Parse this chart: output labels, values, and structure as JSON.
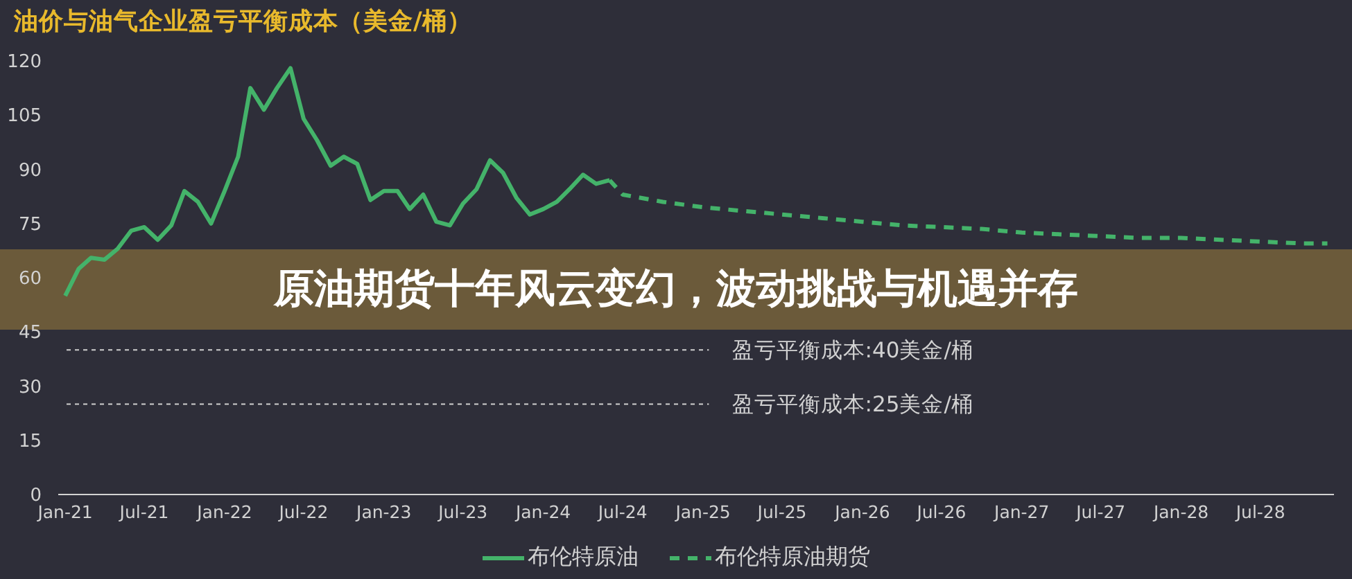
{
  "chart_data": {
    "type": "line",
    "title": "油价与油气企业盈亏平衡成本（美金/桶）",
    "annotations": [
      "原油期货十年风云变幻，波动挑战与机遇并存"
    ],
    "series": [
      {
        "name": "布伦特原油",
        "color": "#44b36a",
        "line_style": "solid",
        "x": [
          "2021-01-01",
          "2021-02-01",
          "2021-03-01",
          "2021-04-01",
          "2021-05-01",
          "2021-06-01",
          "2021-07-01",
          "2021-08-01",
          "2021-09-01",
          "2021-10-01",
          "2021-11-01",
          "2021-12-01",
          "2022-01-01",
          "2022-02-01",
          "2022-03-01",
          "2022-04-01",
          "2022-05-01",
          "2022-06-01",
          "2022-07-01",
          "2022-08-01",
          "2022-09-01",
          "2022-10-01",
          "2022-11-01",
          "2022-12-01",
          "2023-01-01",
          "2023-02-01",
          "2023-03-01",
          "2023-04-01",
          "2023-05-01",
          "2023-06-01",
          "2023-07-01",
          "2023-08-01",
          "2023-09-01",
          "2023-10-01",
          "2023-11-01",
          "2023-12-01",
          "2024-01-01",
          "2024-02-01",
          "2024-03-01",
          "2024-04-01",
          "2024-05-01",
          "2024-06-01"
        ],
        "values": [
          55,
          62.5,
          65.5,
          65,
          68,
          73,
          74,
          70.5,
          74.5,
          84,
          81,
          75,
          84,
          93.5,
          112.5,
          106.5,
          112.5,
          118,
          104,
          98,
          91,
          93.5,
          91.5,
          81.5,
          84,
          84,
          79,
          83,
          75.5,
          74.5,
          80.5,
          84.5,
          92.5,
          89,
          82,
          77.5,
          79,
          81,
          84.5,
          88.5,
          86,
          87
        ]
      },
      {
        "name": "布伦特原油期货",
        "color": "#44b36a",
        "line_style": "dashed",
        "x": [
          "2024-06-01",
          "2024-07-01",
          "2024-10-01",
          "2025-01-01",
          "2025-04-01",
          "2025-07-01",
          "2025-10-01",
          "2026-01-01",
          "2026-04-01",
          "2026-07-01",
          "2026-10-01",
          "2027-01-01",
          "2027-04-01",
          "2027-07-01",
          "2027-10-01",
          "2028-01-01",
          "2028-04-01",
          "2028-07-01",
          "2028-10-01",
          "2028-12-01"
        ],
        "values": [
          87,
          83,
          81,
          79.5,
          78.5,
          77.5,
          76.5,
          75.5,
          74.5,
          74,
          73.5,
          72.5,
          72,
          71.5,
          71,
          71,
          70.5,
          70,
          69.5,
          69.5
        ]
      }
    ],
    "xlim": [
      "2020-12-16",
      "2028-12-16"
    ],
    "xticks": [
      {
        "value": "2021-01-01",
        "label": "Jan-21"
      },
      {
        "value": "2021-07-01",
        "label": "Jul-21"
      },
      {
        "value": "2022-01-01",
        "label": "Jan-22"
      },
      {
        "value": "2022-07-01",
        "label": "Jul-22"
      },
      {
        "value": "2023-01-01",
        "label": "Jan-23"
      },
      {
        "value": "2023-07-01",
        "label": "Jul-23"
      },
      {
        "value": "2024-01-01",
        "label": "Jan-24"
      },
      {
        "value": "2024-07-01",
        "label": "Jul-24"
      },
      {
        "value": "2025-01-01",
        "label": "Jan-25"
      },
      {
        "value": "2025-07-01",
        "label": "Jul-25"
      },
      {
        "value": "2026-01-01",
        "label": "Jan-26"
      },
      {
        "value": "2026-07-01",
        "label": "Jul-26"
      },
      {
        "value": "2027-01-01",
        "label": "Jan-27"
      },
      {
        "value": "2027-07-01",
        "label": "Jul-27"
      },
      {
        "value": "2028-01-01",
        "label": "Jan-28"
      },
      {
        "value": "2028-07-01",
        "label": "Jul-28"
      }
    ],
    "ylim": [
      0,
      120
    ],
    "yticks": [
      0,
      15,
      30,
      45,
      60,
      75,
      90,
      105,
      120
    ],
    "ref_lines": [
      {
        "axis": "y",
        "value": 40,
        "label": "盈亏平衡成本:40美金/桶",
        "color": "#cfcfcf",
        "line_style": "dotted"
      },
      {
        "axis": "y",
        "value": 25,
        "label": "盈亏平衡成本:25美金/桶",
        "color": "#cfcfcf",
        "line_style": "dotted"
      }
    ],
    "legend": "bottom"
  }
}
